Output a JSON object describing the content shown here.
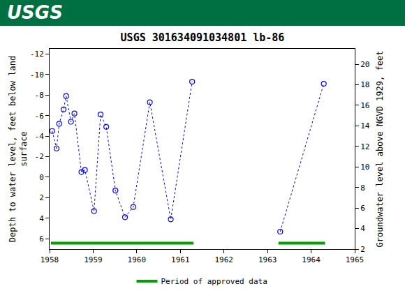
{
  "chart_data": {
    "type": "scatter",
    "banner_text": "USGS",
    "title": "USGS 301634091034801 lb-86",
    "y_label": "Depth to water level, feet below land\nsurface",
    "y2_label": "Groundwater level above NGVD 1929, feet",
    "x": [
      1958.06,
      1958.16,
      1958.22,
      1958.32,
      1958.38,
      1958.49,
      1958.57,
      1958.73,
      1958.81,
      1959.02,
      1959.17,
      1959.3,
      1959.51,
      1959.73,
      1959.92,
      1960.3,
      1960.78,
      1961.27,
      null,
      1963.29,
      1964.29
    ],
    "values": [
      -4.5,
      -2.8,
      -5.2,
      -6.6,
      -7.9,
      -5.4,
      -6.2,
      -0.5,
      -0.7,
      3.3,
      -6.1,
      -4.9,
      1.3,
      3.9,
      2.9,
      -7.3,
      4.1,
      -9.3,
      null,
      5.3,
      -9.1
    ],
    "color": "#0000ff",
    "marker": "circle-open",
    "line_style": "dot",
    "xlim": [
      1958,
      1965
    ],
    "xticks": [
      1958,
      1959,
      1960,
      1961,
      1962,
      1963,
      1964,
      1965
    ],
    "ylim": [
      7,
      -12.5
    ],
    "yticks": [
      -12,
      -10,
      -8,
      -6,
      -4,
      -2,
      0,
      2,
      4,
      6
    ],
    "y2lim": [
      2,
      21.5
    ],
    "y2ticks": [
      2,
      4,
      6,
      8,
      10,
      12,
      14,
      16,
      18,
      20
    ],
    "approved_periods": {
      "name": "Period of approved data",
      "color": "#00a000",
      "ranges": [
        [
          1958.03,
          1961.3
        ],
        [
          1963.25,
          1964.32
        ]
      ]
    },
    "legend": "bottom",
    "grid": false
  }
}
